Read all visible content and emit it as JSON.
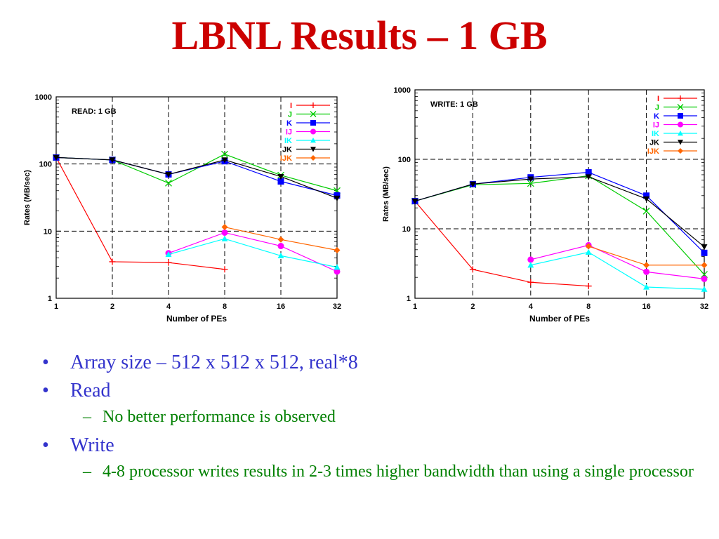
{
  "slide": {
    "title": "LBNL Results – 1 GB"
  },
  "bullets": [
    {
      "text": "Array size – 512 x 512 x 512, real*8",
      "level": 1
    },
    {
      "text": "Read",
      "level": 1
    },
    {
      "text": "No better performance is observed",
      "level": 2
    },
    {
      "text": "Write",
      "level": 1
    },
    {
      "text": "4-8 processor writes results in 2-3 times higher bandwidth than using a single processor",
      "level": 2
    }
  ],
  "chart_data": [
    {
      "type": "line",
      "title": "READ: 1 GB",
      "xlabel": "Number of PEs",
      "ylabel": "Rates (MB/sec)",
      "yscale": "log",
      "ylim": [
        1,
        1000
      ],
      "x": [
        1,
        2,
        4,
        8,
        16,
        32
      ],
      "xticks": [
        "1",
        "2",
        "4",
        "8",
        "16",
        "32"
      ],
      "yticks": [
        "1",
        "10",
        "100",
        "1000"
      ],
      "grid": true,
      "legend": "top-right",
      "series": [
        {
          "name": "I",
          "color": "#ff0000",
          "marker": "plus",
          "values": [
            125,
            3.5,
            3.4,
            2.7,
            null,
            null
          ]
        },
        {
          "name": "J",
          "color": "#00cc00",
          "marker": "x",
          "values": [
            125,
            115,
            52,
            140,
            68,
            40
          ]
        },
        {
          "name": "K",
          "color": "#0000ff",
          "marker": "square",
          "values": [
            125,
            115,
            70,
            110,
            55,
            34
          ]
        },
        {
          "name": "IJ",
          "color": "#ff00ff",
          "marker": "circle",
          "values": [
            null,
            null,
            4.7,
            9.5,
            6.0,
            2.5
          ]
        },
        {
          "name": "IK",
          "color": "#00ffff",
          "marker": "triangle",
          "values": [
            null,
            null,
            4.5,
            7.7,
            4.3,
            2.9
          ]
        },
        {
          "name": "JK",
          "color": "#000000",
          "marker": "tridown",
          "values": [
            125,
            115,
            70,
            115,
            65,
            31
          ]
        },
        {
          "name": "IJK",
          "color": "#ff6600",
          "marker": "diamond",
          "values": [
            null,
            null,
            null,
            11.5,
            7.5,
            5.2
          ]
        }
      ]
    },
    {
      "type": "line",
      "title": "WRITE: 1 GB",
      "xlabel": "Number of PEs",
      "ylabel": "Rates (MB/sec)",
      "yscale": "log",
      "ylim": [
        1,
        1000
      ],
      "x": [
        1,
        2,
        4,
        8,
        16,
        32
      ],
      "xticks": [
        "1",
        "2",
        "4",
        "8",
        "16",
        "32"
      ],
      "yticks": [
        "1",
        "10",
        "100",
        "1000"
      ],
      "grid": true,
      "legend": "top-right",
      "series": [
        {
          "name": "I",
          "color": "#ff0000",
          "marker": "plus",
          "values": [
            25,
            2.6,
            1.7,
            1.5,
            null,
            null
          ]
        },
        {
          "name": "J",
          "color": "#00cc00",
          "marker": "x",
          "values": [
            25,
            43,
            45,
            58,
            18,
            2.2
          ]
        },
        {
          "name": "K",
          "color": "#0000ff",
          "marker": "square",
          "values": [
            25,
            44,
            55,
            65,
            30,
            4.5
          ]
        },
        {
          "name": "IJ",
          "color": "#ff00ff",
          "marker": "circle",
          "values": [
            null,
            null,
            3.6,
            5.8,
            2.4,
            1.9
          ]
        },
        {
          "name": "IK",
          "color": "#00ffff",
          "marker": "triangle",
          "values": [
            null,
            null,
            3.0,
            4.6,
            1.45,
            1.35
          ]
        },
        {
          "name": "JK",
          "color": "#000000",
          "marker": "tridown",
          "values": [
            25,
            44,
            52,
            56,
            27,
            5.5
          ]
        },
        {
          "name": "IJK",
          "color": "#ff6600",
          "marker": "diamond",
          "values": [
            null,
            null,
            null,
            5.6,
            3.0,
            3.0
          ]
        }
      ]
    }
  ]
}
